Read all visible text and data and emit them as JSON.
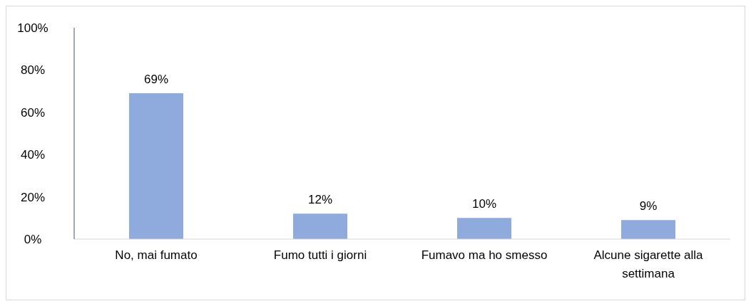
{
  "chart_data": {
    "type": "bar",
    "categories": [
      "No, mai fumato",
      "Fumo tutti i giorni",
      "Fumavo ma ho smesso",
      "Alcune sigarette alla settimana"
    ],
    "values": [
      69,
      12,
      10,
      9
    ],
    "color": "#8faadc",
    "value_labels": [
      "69%",
      "12%",
      "10%",
      "9%"
    ],
    "ylim": [
      0,
      100
    ],
    "yticks": [
      {
        "value": 0,
        "label": "0%"
      },
      {
        "value": 20,
        "label": "20%"
      },
      {
        "value": 40,
        "label": "40%"
      },
      {
        "value": 60,
        "label": "60%"
      },
      {
        "value": 80,
        "label": "80%"
      },
      {
        "value": 100,
        "label": "100%"
      }
    ],
    "grid": false,
    "legend": false
  }
}
